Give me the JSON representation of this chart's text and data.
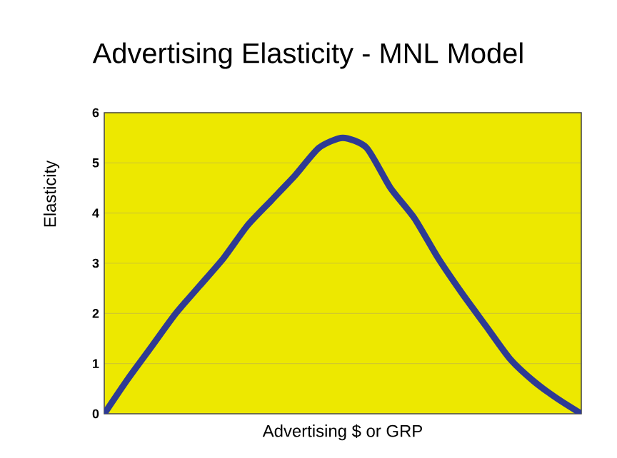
{
  "chart_data": {
    "type": "line",
    "title": "Advertising Elasticity - MNL Model",
    "xlabel": "Advertising $ or GRP",
    "ylabel": "Elasticity",
    "categories": [
      null,
      null,
      null,
      null,
      null,
      null,
      null,
      null,
      null,
      null,
      null,
      null,
      null,
      null,
      null,
      null,
      null,
      null,
      null,
      null,
      null
    ],
    "series": [
      {
        "color": "#2e3a94",
        "values": [
          0,
          0.7,
          1.35,
          2.0,
          2.55,
          3.1,
          3.75,
          4.25,
          4.75,
          5.3,
          5.5,
          5.3,
          4.5,
          3.9,
          3.1,
          2.4,
          1.75,
          1.1,
          0.65,
          0.3,
          0
        ]
      }
    ],
    "ylim": [
      0,
      6
    ],
    "yticks": [
      0,
      1,
      2,
      3,
      4,
      5,
      6
    ],
    "grid": "y",
    "marker": "none",
    "line_style": "solid"
  }
}
